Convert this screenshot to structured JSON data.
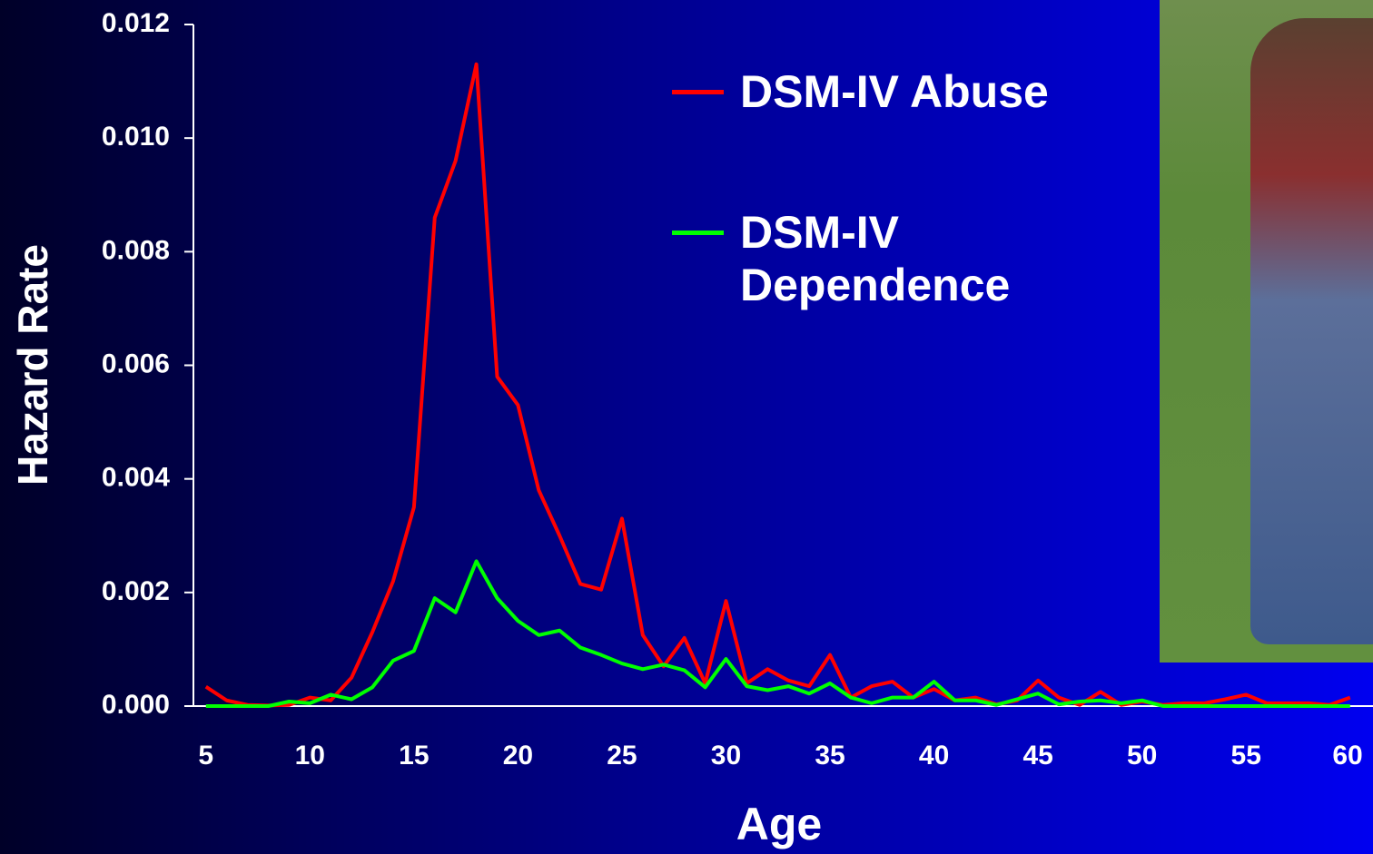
{
  "chart_data": {
    "type": "line",
    "x_label": "Age",
    "y_label": "Hazard Rate",
    "x": [
      5,
      6,
      7,
      8,
      9,
      10,
      11,
      12,
      13,
      14,
      15,
      16,
      17,
      18,
      19,
      20,
      21,
      22,
      23,
      24,
      25,
      26,
      27,
      28,
      29,
      30,
      31,
      32,
      33,
      34,
      35,
      36,
      37,
      38,
      39,
      40,
      41,
      42,
      43,
      44,
      45,
      46,
      47,
      48,
      49,
      50,
      51,
      52,
      53,
      54,
      55,
      56,
      57,
      58,
      59,
      60
    ],
    "series": [
      {
        "name": "DSM-IV Abuse",
        "color": "#ff0000",
        "values": [
          0.00034,
          0.0001,
          2e-05,
          1e-05,
          2e-05,
          0.00015,
          0.0001,
          0.0005,
          0.0013,
          0.0022,
          0.0035,
          0.0086,
          0.0096,
          0.0113,
          0.0058,
          0.0053,
          0.0038,
          0.003,
          0.00215,
          0.00205,
          0.0033,
          0.00125,
          0.0007,
          0.0012,
          0.0004,
          0.00185,
          0.0004,
          0.00065,
          0.00045,
          0.00035,
          0.0009,
          0.00015,
          0.00035,
          0.00043,
          0.00015,
          0.0003,
          0.0001,
          0.00015,
          3e-05,
          0.0001,
          0.00045,
          0.00015,
          2e-05,
          0.00025,
          2e-05,
          8e-05,
          2e-05,
          5e-05,
          5e-05,
          0.00012,
          0.0002,
          5e-05,
          5e-05,
          5e-05,
          2e-05,
          0.00015
        ]
      },
      {
        "name": "DSM-IV Dependence",
        "color": "#00ff00",
        "values": [
          0,
          0,
          0,
          0,
          8e-05,
          5e-05,
          0.0002,
          0.00012,
          0.00033,
          0.0008,
          0.00097,
          0.0019,
          0.00165,
          0.00255,
          0.0019,
          0.0015,
          0.00125,
          0.00133,
          0.00103,
          0.0009,
          0.00075,
          0.00065,
          0.00073,
          0.00063,
          0.00033,
          0.00083,
          0.00035,
          0.00028,
          0.00035,
          0.00022,
          0.0004,
          0.00015,
          5e-05,
          0.00015,
          0.00015,
          0.00043,
          0.0001,
          0.0001,
          2e-05,
          0.00012,
          0.00022,
          3e-05,
          8e-05,
          0.0001,
          5e-05,
          0.0001,
          0,
          0,
          0,
          0,
          0,
          0,
          0,
          0,
          0,
          0
        ]
      }
    ],
    "xlim": [
      4.4,
      61.1
    ],
    "xticks": [
      5,
      10,
      15,
      20,
      25,
      30,
      35,
      40,
      45,
      50,
      55,
      60
    ],
    "ylim": [
      0,
      0.012
    ],
    "yticks": [
      {
        "value": 0,
        "label": "0.000"
      },
      {
        "value": 0.002,
        "label": "0.002"
      },
      {
        "value": 0.004,
        "label": "0.004"
      },
      {
        "value": 0.006,
        "label": "0.006"
      },
      {
        "value": 0.008,
        "label": "0.008"
      },
      {
        "value": 0.01,
        "label": "0.010"
      },
      {
        "value": 0.012,
        "label": "0.012"
      }
    ],
    "grid": false
  }
}
